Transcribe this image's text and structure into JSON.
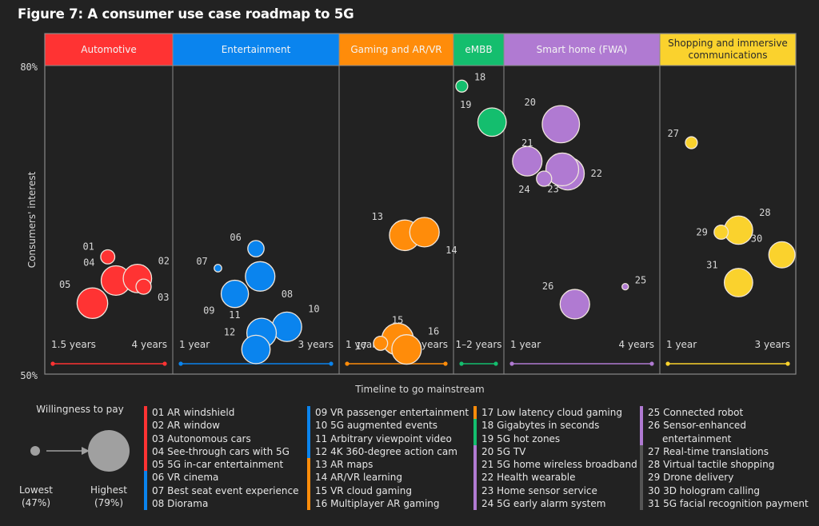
{
  "title": "Figure 7: A consumer use case roadmap to 5G",
  "chart_data": {
    "type": "bubble",
    "title": "Figure 7: A consumer use case roadmap to 5G",
    "xlabel": "Timeline to go mainstream",
    "ylabel": "Consumers' interest",
    "ylim": [
      50,
      80
    ],
    "y_ticks": [
      "80%",
      "50%"
    ],
    "size_encoding": {
      "label": "Willingness to pay",
      "min_label": "Lowest",
      "min_value": "(47%)",
      "max_label": "Highest",
      "max_value": "(79%)",
      "range": [
        47,
        79
      ]
    },
    "categories": [
      {
        "name": "Automotive",
        "color": "#ff3333",
        "timeline_start": "1.5 years",
        "timeline_end": "4 years"
      },
      {
        "name": "Entertainment",
        "color": "#0a84ee",
        "timeline_start": "1 year",
        "timeline_end": "3 years"
      },
      {
        "name": "Gaming and AR/VR",
        "color": "#ff8c0a",
        "timeline_start": "1 year",
        "timeline_end": "3 years"
      },
      {
        "name": "eMBB",
        "color": "#14be6e",
        "timeline_start": "1–2 years",
        "timeline_end": ""
      },
      {
        "name": "Smart home (FWA)",
        "color": "#b07ad2",
        "timeline_start": "1 year",
        "timeline_end": "4 years"
      },
      {
        "name": "Shopping and immersive communications",
        "color": "#fad22d",
        "timeline_start": "1 year",
        "timeline_end": "3 years"
      }
    ],
    "points": [
      {
        "id": "01",
        "label": "AR windshield",
        "category": 0,
        "x": 0.49,
        "interest": 61.4,
        "willingness": 54
      },
      {
        "id": "02",
        "label": "AR window",
        "category": 0,
        "x": 0.78,
        "interest": 59.3,
        "willingness": 67
      },
      {
        "id": "03",
        "label": "Autonomous cars",
        "category": 0,
        "x": 0.84,
        "interest": 58.5,
        "willingness": 55
      },
      {
        "id": "04",
        "label": "See-through cars with 5G",
        "category": 0,
        "x": 0.57,
        "interest": 59.1,
        "willingness": 68
      },
      {
        "id": "05",
        "label": "5G in-car entertainment",
        "category": 0,
        "x": 0.34,
        "interest": 56.9,
        "willingness": 69
      },
      {
        "id": "06",
        "label": "VR cinema",
        "category": 1,
        "x": 0.5,
        "interest": 62.2,
        "willingness": 56
      },
      {
        "id": "07",
        "label": "Best seat event experience",
        "category": 1,
        "x": 0.23,
        "interest": 60.3,
        "willingness": 48
      },
      {
        "id": "08",
        "label": "Diorama",
        "category": 1,
        "x": 0.53,
        "interest": 59.5,
        "willingness": 68
      },
      {
        "id": "09",
        "label": "VR passenger entertainment",
        "category": 1,
        "x": 0.35,
        "interest": 57.8,
        "willingness": 66
      },
      {
        "id": "10",
        "label": "5G augmented events",
        "category": 1,
        "x": 0.72,
        "interest": 54.6,
        "willingness": 68
      },
      {
        "id": "11",
        "label": "Arbitrary viewpoint video",
        "category": 1,
        "x": 0.54,
        "interest": 54.0,
        "willingness": 68
      },
      {
        "id": "12",
        "label": "4K 360-degree action cam",
        "category": 1,
        "x": 0.5,
        "interest": 52.4,
        "willingness": 67
      },
      {
        "id": "13",
        "label": "AR maps",
        "category": 2,
        "x": 0.59,
        "interest": 63.5,
        "willingness": 69
      },
      {
        "id": "14",
        "label": "AR/VR learning",
        "category": 2,
        "x": 0.81,
        "interest": 63.8,
        "willingness": 68
      },
      {
        "id": "15",
        "label": "VR cloud gaming",
        "category": 2,
        "x": 0.51,
        "interest": 53.4,
        "willingness": 70
      },
      {
        "id": "16",
        "label": "Multiplayer AR gaming",
        "category": 2,
        "x": 0.61,
        "interest": 52.4,
        "willingness": 68
      },
      {
        "id": "17",
        "label": "Low latency cloud gaming",
        "category": 2,
        "x": 0.32,
        "interest": 53.0,
        "willingness": 54
      },
      {
        "id": "18",
        "label": "Gigabytes in seconds",
        "category": 3,
        "x": 0.1,
        "interest": 78.0,
        "willingness": 52
      },
      {
        "id": "19",
        "label": "5G hot zones",
        "category": 3,
        "x": 0.8,
        "interest": 74.5,
        "willingness": 67
      },
      {
        "id": "20",
        "label": "5G TV",
        "category": 4,
        "x": 0.35,
        "interest": 74.3,
        "willingness": 75
      },
      {
        "id": "21",
        "label": "5G home wireless broadband",
        "category": 4,
        "x": 0.11,
        "interest": 70.7,
        "willingness": 68
      },
      {
        "id": "22",
        "label": "Health wearable",
        "category": 4,
        "x": 0.4,
        "interest": 69.5,
        "willingness": 71
      },
      {
        "id": "23",
        "label": "Home sensor service",
        "category": 4,
        "x": 0.36,
        "interest": 69.9,
        "willingness": 71
      },
      {
        "id": "24",
        "label": "5G early alarm system",
        "category": 4,
        "x": 0.23,
        "interest": 69.0,
        "willingness": 55
      },
      {
        "id": "25",
        "label": "Connected robot",
        "category": 4,
        "x": 0.81,
        "interest": 58.5,
        "willingness": 47
      },
      {
        "id": "26",
        "label": "Sensor-enhanced entertainment",
        "category": 4,
        "x": 0.45,
        "interest": 56.8,
        "willingness": 68
      },
      {
        "id": "27",
        "label": "Real-time translations",
        "category": 5,
        "x": 0.19,
        "interest": 72.5,
        "willingness": 52
      },
      {
        "id": "28",
        "label": "Virtual tactile shopping",
        "category": 5,
        "x": 0.57,
        "interest": 64.0,
        "willingness": 67
      },
      {
        "id": "29",
        "label": "Drone delivery",
        "category": 5,
        "x": 0.43,
        "interest": 63.8,
        "willingness": 54
      },
      {
        "id": "30",
        "label": "3D hologram calling",
        "category": 5,
        "x": 0.92,
        "interest": 61.6,
        "willingness": 65
      },
      {
        "id": "31",
        "label": "5G facial recognition payment",
        "category": 5,
        "x": 0.57,
        "interest": 58.9,
        "willingness": 67
      }
    ]
  },
  "legend": {
    "columns": [
      {
        "items": [
          {
            "text": "01 AR windshield",
            "category": 0
          },
          {
            "text": "02 AR window",
            "category": 0
          },
          {
            "text": "03 Autonomous cars",
            "category": 0
          },
          {
            "text": "04 See-through cars with 5G",
            "category": 0
          },
          {
            "text": "05 5G in-car entertainment",
            "category": 0
          },
          {
            "text": "06 VR cinema",
            "category": 1
          },
          {
            "text": "07 Best seat event experience",
            "category": 1
          },
          {
            "text": "08 Diorama",
            "category": 1
          }
        ]
      },
      {
        "items": [
          {
            "text": "09 VR passenger entertainment",
            "category": 1
          },
          {
            "text": "10 5G augmented events",
            "category": 1
          },
          {
            "text": "11 Arbitrary viewpoint video",
            "category": 1
          },
          {
            "text": "12 4K 360-degree action cam",
            "category": 1
          },
          {
            "text": "13 AR maps",
            "category": 2
          },
          {
            "text": "14 AR/VR learning",
            "category": 2
          },
          {
            "text": "15 VR cloud gaming",
            "category": 2
          },
          {
            "text": "16 Multiplayer AR gaming",
            "category": 2
          }
        ]
      },
      {
        "items": [
          {
            "text": "17 Low latency cloud gaming",
            "category": 2
          },
          {
            "text": "18 Gigabytes in seconds",
            "category": 3
          },
          {
            "text": "19 5G hot zones",
            "category": 3
          },
          {
            "text": "20 5G TV",
            "category": 4
          },
          {
            "text": "21 5G home wireless broadband",
            "category": 4
          },
          {
            "text": "22 Health wearable",
            "category": 4
          },
          {
            "text": "23 Home sensor service",
            "category": 4
          },
          {
            "text": "24 5G early alarm system",
            "category": 4
          }
        ]
      },
      {
        "items": [
          {
            "text": "25 Connected robot",
            "category": 4
          },
          {
            "text": "26 Sensor-enhanced",
            "category": 4
          },
          {
            "text": "entertainment",
            "category": 4,
            "continuation": true
          },
          {
            "text": "27 Real-time translations",
            "category": 5
          },
          {
            "text": "28 Virtual tactile shopping",
            "category": 5
          },
          {
            "text": "29 Drone delivery",
            "category": 5
          },
          {
            "text": "30 3D hologram calling",
            "category": 5
          },
          {
            "text": "31 5G facial recognition payment",
            "category": 5
          }
        ]
      }
    ],
    "shopping_bar_color": "#555555"
  },
  "colors": {
    "background": "#222222",
    "grid_line": "#8a8a8a",
    "bubble_stroke": "#f0e6dc",
    "text": "#e6e6e6",
    "wtp_gray": "#a0a0a0"
  }
}
